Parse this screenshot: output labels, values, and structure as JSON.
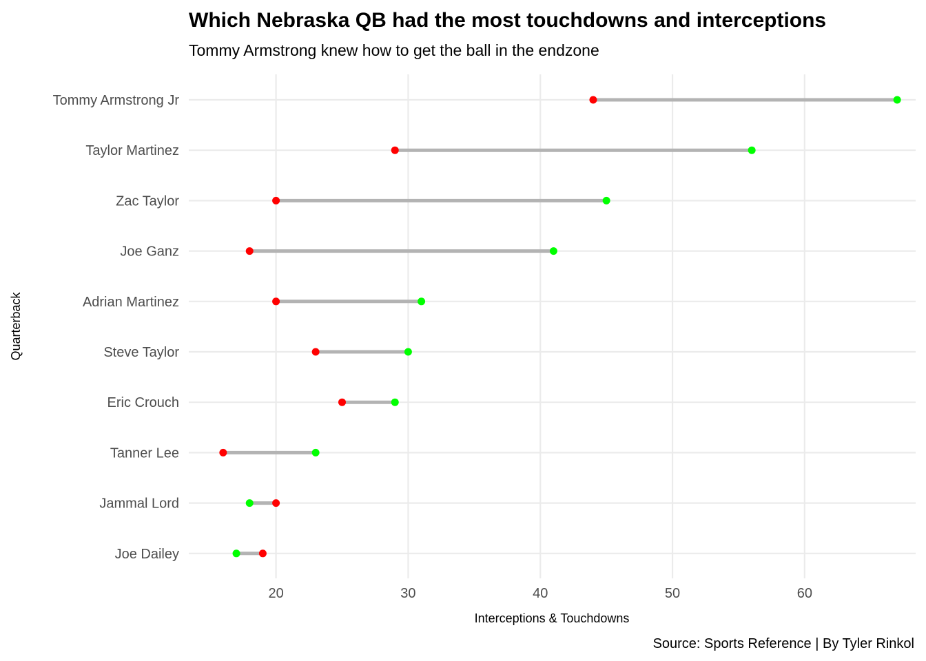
{
  "chart_data": {
    "type": "dumbbell",
    "title": "Which Nebraska QB had the most touchdowns and interceptions",
    "subtitle": "Tommy Armstrong knew how to get the ball in the endzone",
    "xlabel": "Interceptions & Touchdowns",
    "ylabel": "Quarterback",
    "caption": "Source: Sports Reference | By Tyler Rinkol",
    "xlim": [
      13.4,
      68.4
    ],
    "x_ticks": [
      20,
      30,
      40,
      50,
      60
    ],
    "grid": true,
    "colors": {
      "touchdowns": "#00ff00",
      "interceptions": "#ff0000",
      "segment": "#b3b3b3",
      "grid": "#ebebeb"
    },
    "categories": [
      "Tommy Armstrong Jr",
      "Taylor Martinez",
      "Zac Taylor",
      "Joe Ganz",
      "Adrian Martinez",
      "Steve Taylor",
      "Eric Crouch",
      "Tanner Lee",
      "Jammal Lord",
      "Joe Dailey"
    ],
    "series": [
      {
        "key": "touchdowns",
        "values": [
          67,
          56,
          45,
          41,
          31,
          30,
          29,
          23,
          18,
          17
        ]
      },
      {
        "key": "interceptions",
        "values": [
          44,
          29,
          20,
          18,
          20,
          23,
          25,
          16,
          20,
          19
        ]
      }
    ]
  }
}
